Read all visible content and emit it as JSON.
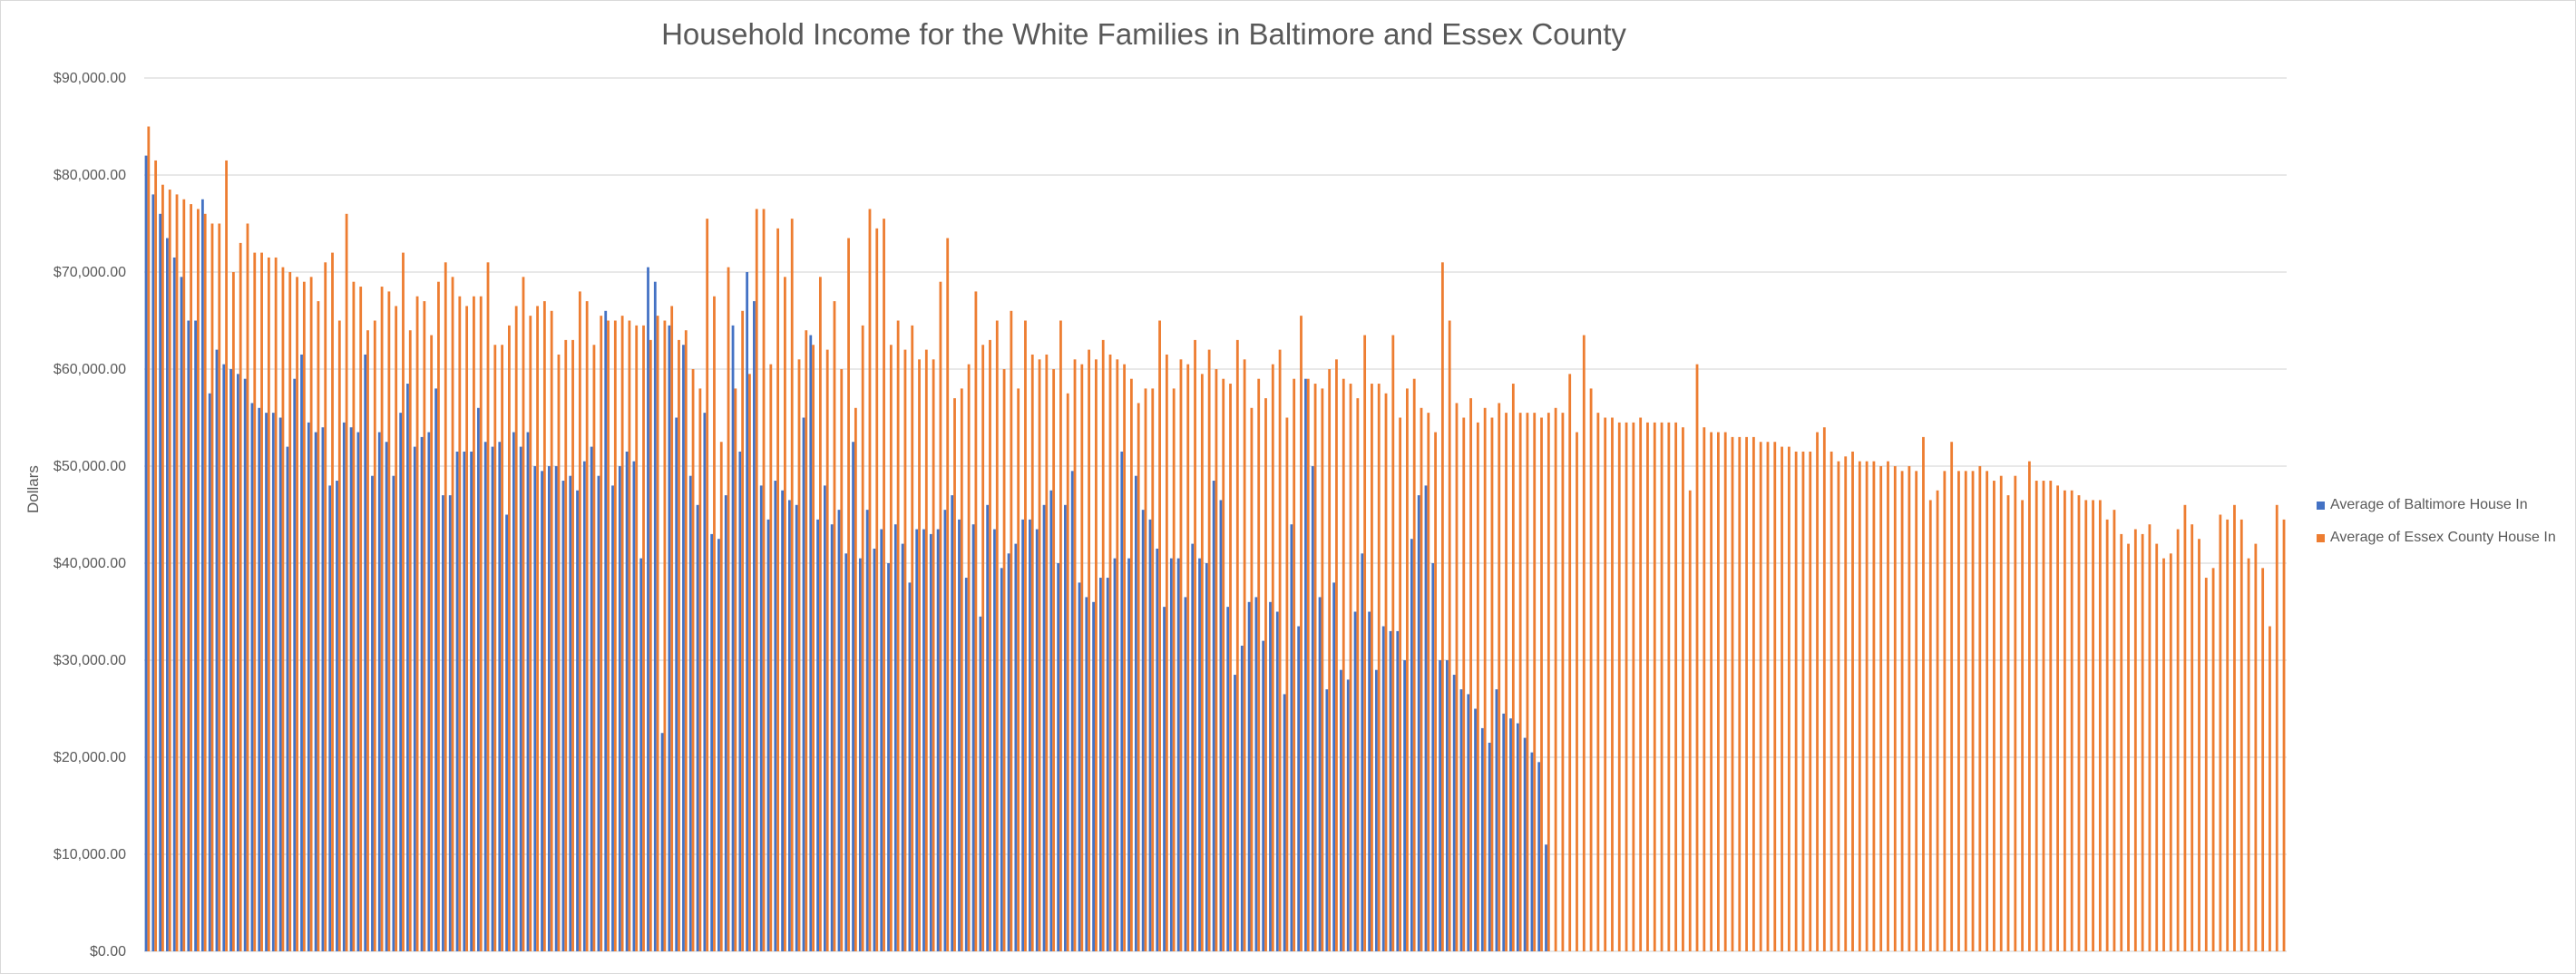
{
  "chart_data": {
    "type": "bar",
    "title": "Household Income for the White Families in Baltimore and Essex County",
    "xlabel": "",
    "ylabel": "Dollars",
    "ylim": [
      0,
      90000
    ],
    "yticks": [
      "$0.00",
      "$10,000.00",
      "$20,000.00",
      "$30,000.00",
      "$40,000.00",
      "$50,000.00",
      "$60,000.00",
      "$70,000.00",
      "$80,000.00",
      "$90,000.00"
    ],
    "grid": true,
    "legend_position": "right",
    "series": [
      {
        "name": "Average of Baltimore House In",
        "color": "#4472c4",
        "values": [
          82000,
          78000,
          76000,
          73500,
          71500,
          69500,
          65000,
          65000,
          77500,
          57500,
          62000,
          60500,
          60000,
          59500,
          59000,
          56500,
          56000,
          55500,
          55500,
          55000,
          52000,
          59000,
          61500,
          54500,
          53500,
          54000,
          48000,
          48500,
          54500,
          54000,
          53500,
          61500,
          49000,
          53500,
          52500,
          49000,
          55500,
          58500,
          52000,
          53000,
          53500,
          58000,
          47000,
          47000,
          51500,
          51500,
          51500,
          56000,
          52500,
          52000,
          52500,
          45000,
          53500,
          52000,
          53500,
          50000,
          49500,
          50000,
          50000,
          48500,
          49000,
          47500,
          50500,
          52000,
          49000,
          66000,
          48000,
          50000,
          51500,
          50500,
          40500,
          70500,
          69000,
          22500,
          64500,
          55000,
          62500,
          49000,
          46000,
          55500,
          43000,
          42500,
          47000,
          64500,
          51500,
          70000,
          67000,
          48000,
          44500,
          48500,
          47500,
          46500,
          46000,
          55000,
          63500,
          44500,
          48000,
          44000,
          45500,
          41000,
          52500,
          40500,
          45500,
          41500,
          43500,
          40000,
          44000,
          42000,
          38000,
          43500,
          43500,
          43000,
          43500,
          45500,
          47000,
          44500,
          38500,
          44000,
          34500,
          46000,
          43500,
          39500,
          41000,
          42000,
          44500,
          44500,
          43500,
          46000,
          47500,
          40000,
          46000,
          49500,
          38000,
          36500,
          36000,
          38500,
          38500,
          40500,
          51500,
          40500,
          49000,
          45500,
          44500,
          41500,
          35500,
          40500,
          40500,
          36500,
          42000,
          40500,
          40000,
          48500,
          46500,
          35500,
          28500,
          31500,
          36000,
          36500,
          32000,
          36000,
          35000,
          26500,
          44000,
          33500,
          59000,
          50000,
          36500,
          27000,
          38000,
          29000,
          28000,
          35000,
          41000,
          35000,
          29000,
          33500,
          33000,
          33000,
          30000,
          42500,
          47000,
          48000,
          40000,
          30000,
          30000,
          28500,
          27000,
          26500,
          25000,
          23000,
          21500,
          27000,
          24500,
          24000,
          23500,
          22000,
          20500,
          19500,
          11000
        ]
      },
      {
        "name": "Average of Essex County House In",
        "color": "#ed7d31",
        "values": [
          85000,
          81500,
          79000,
          78500,
          78000,
          77500,
          77000,
          76500,
          76000,
          75000,
          75000,
          81500,
          70000,
          73000,
          75000,
          72000,
          72000,
          71500,
          71500,
          70500,
          70000,
          69500,
          69000,
          69500,
          67000,
          71000,
          72000,
          65000,
          76000,
          69000,
          68500,
          64000,
          65000,
          68500,
          68000,
          66500,
          72000,
          64000,
          67500,
          67000,
          63500,
          69000,
          71000,
          69500,
          67500,
          66500,
          67500,
          67500,
          71000,
          62500,
          62500,
          64500,
          66500,
          69500,
          65500,
          66500,
          67000,
          66000,
          61500,
          63000,
          63000,
          68000,
          67000,
          62500,
          65500,
          65000,
          65000,
          65500,
          65000,
          64500,
          64500,
          63000,
          65500,
          65000,
          66500,
          63000,
          64000,
          60000,
          58000,
          75500,
          67500,
          52500,
          70500,
          58000,
          66000,
          59500,
          76500,
          76500,
          60500,
          74500,
          69500,
          75500,
          61000,
          64000,
          62500,
          69500,
          62000,
          67000,
          60000,
          73500,
          56000,
          64500,
          76500,
          74500,
          75500,
          62500,
          65000,
          62000,
          64500,
          61000,
          62000,
          61000,
          69000,
          73500,
          57000,
          58000,
          60500,
          68000,
          62500,
          63000,
          65000,
          60000,
          66000,
          58000,
          65000,
          61500,
          61000,
          61500,
          60000,
          65000,
          57500,
          61000,
          60500,
          62000,
          61000,
          63000,
          61500,
          61000,
          60500,
          59000,
          56500,
          58000,
          58000,
          65000,
          61500,
          58000,
          61000,
          60500,
          63000,
          59500,
          62000,
          60000,
          59000,
          58500,
          63000,
          61000,
          56000,
          59000,
          57000,
          60500,
          62000,
          55000,
          59000,
          65500,
          59000,
          58500,
          58000,
          60000,
          61000,
          59000,
          58500,
          57000,
          63500,
          58500,
          58500,
          57500,
          63500,
          55000,
          58000,
          59000,
          56000,
          55500,
          53500,
          71000,
          65000,
          56500,
          55000,
          57000,
          54500,
          56000,
          55000,
          56500,
          55500,
          58500,
          55500,
          55500,
          55500,
          55000,
          55500,
          56000,
          55500,
          59500,
          53500,
          63500,
          58000,
          55500,
          55000,
          55000,
          54500,
          54500,
          54500,
          55000,
          54500,
          54500,
          54500,
          54500,
          54500,
          54000,
          47500,
          60500,
          54000,
          53500,
          53500,
          53500,
          53000,
          53000,
          53000,
          53000,
          52500,
          52500,
          52500,
          52000,
          52000,
          51500,
          51500,
          51500,
          53500,
          54000,
          51500,
          50500,
          51000,
          51500,
          50500,
          50500,
          50500,
          50000,
          50500,
          50000,
          49500,
          50000,
          49500,
          53000,
          46500,
          47500,
          49500,
          52500,
          49500,
          49500,
          49500,
          50000,
          49500,
          48500,
          49000,
          47000,
          49000,
          46500,
          50500,
          48500,
          48500,
          48500,
          48000,
          47500,
          47500,
          47000,
          46500,
          46500,
          46500,
          44500,
          45500,
          43000,
          42000,
          43500,
          43000,
          44000,
          42000,
          40500,
          41000,
          43500,
          46000,
          44000,
          42500,
          38500,
          39500,
          45000,
          44500,
          46000,
          44500,
          40500,
          42000,
          39500,
          33500,
          46000,
          44500
        ]
      }
    ]
  }
}
